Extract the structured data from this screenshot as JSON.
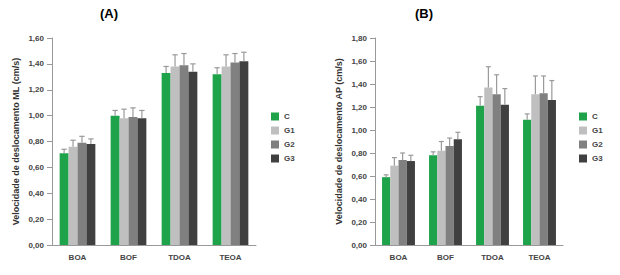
{
  "chart_data": [
    {
      "type": "bar",
      "title": "(A)",
      "y_label": "Velocidade de deslocamento ML (cm/s)",
      "categories": [
        "BOA",
        "BOF",
        "TDOA",
        "TEOA"
      ],
      "series": [
        {
          "name": "C",
          "color": "#1ea34a",
          "values": [
            0.71,
            1.0,
            1.33,
            1.32
          ],
          "errors": [
            0.03,
            0.04,
            0.05,
            0.05
          ]
        },
        {
          "name": "G1",
          "color": "#bfbfbf",
          "values": [
            0.76,
            0.98,
            1.38,
            1.38
          ],
          "errors": [
            0.05,
            0.07,
            0.09,
            0.09
          ]
        },
        {
          "name": "G2",
          "color": "#808080",
          "values": [
            0.79,
            0.99,
            1.39,
            1.41
          ],
          "errors": [
            0.05,
            0.07,
            0.09,
            0.07
          ]
        },
        {
          "name": "G3",
          "color": "#404040",
          "values": [
            0.78,
            0.98,
            1.34,
            1.42
          ],
          "errors": [
            0.04,
            0.06,
            0.06,
            0.07
          ]
        }
      ],
      "ylim": [
        0,
        1.6
      ],
      "yticks": [
        {
          "value": 0,
          "label": "0,00"
        },
        {
          "value": 0.2,
          "label": "0,20"
        },
        {
          "value": 0.4,
          "label": "0,40"
        },
        {
          "value": 0.6,
          "label": "0,60"
        },
        {
          "value": 0.8,
          "label": "0,80"
        },
        {
          "value": 1.0,
          "label": "1,00"
        },
        {
          "value": 1.2,
          "label": "1,20"
        },
        {
          "value": 1.4,
          "label": "1,40"
        },
        {
          "value": 1.6,
          "label": "1,60"
        }
      ],
      "grid": false,
      "legend": "right"
    },
    {
      "type": "bar",
      "title": "(B)",
      "y_label": "Velocidade de deslocamento AP (cm/s)",
      "categories": [
        "BOA",
        "BOF",
        "TDOA",
        "TEOA"
      ],
      "series": [
        {
          "name": "C",
          "color": "#1ea34a",
          "values": [
            0.59,
            0.78,
            1.21,
            1.09
          ],
          "errors": [
            0.02,
            0.03,
            0.08,
            0.05
          ]
        },
        {
          "name": "G1",
          "color": "#bfbfbf",
          "values": [
            0.69,
            0.82,
            1.37,
            1.31
          ],
          "errors": [
            0.07,
            0.08,
            0.18,
            0.16
          ]
        },
        {
          "name": "G2",
          "color": "#808080",
          "values": [
            0.74,
            0.86,
            1.31,
            1.32
          ],
          "errors": [
            0.06,
            0.07,
            0.17,
            0.15
          ]
        },
        {
          "name": "G3",
          "color": "#404040",
          "values": [
            0.73,
            0.92,
            1.22,
            1.26
          ],
          "errors": [
            0.05,
            0.06,
            0.14,
            0.17
          ]
        }
      ],
      "ylim": [
        0,
        1.8
      ],
      "yticks": [
        {
          "value": 0,
          "label": "0,00"
        },
        {
          "value": 0.2,
          "label": "0,20"
        },
        {
          "value": 0.4,
          "label": "0,40"
        },
        {
          "value": 0.6,
          "label": "0,60"
        },
        {
          "value": 0.8,
          "label": "0,80"
        },
        {
          "value": 1.0,
          "label": "1,00"
        },
        {
          "value": 1.2,
          "label": "1,20"
        },
        {
          "value": 1.4,
          "label": "1,40"
        },
        {
          "value": 1.6,
          "label": "1,60"
        },
        {
          "value": 1.8,
          "label": "1,80"
        }
      ],
      "grid": false,
      "legend": "right"
    }
  ]
}
